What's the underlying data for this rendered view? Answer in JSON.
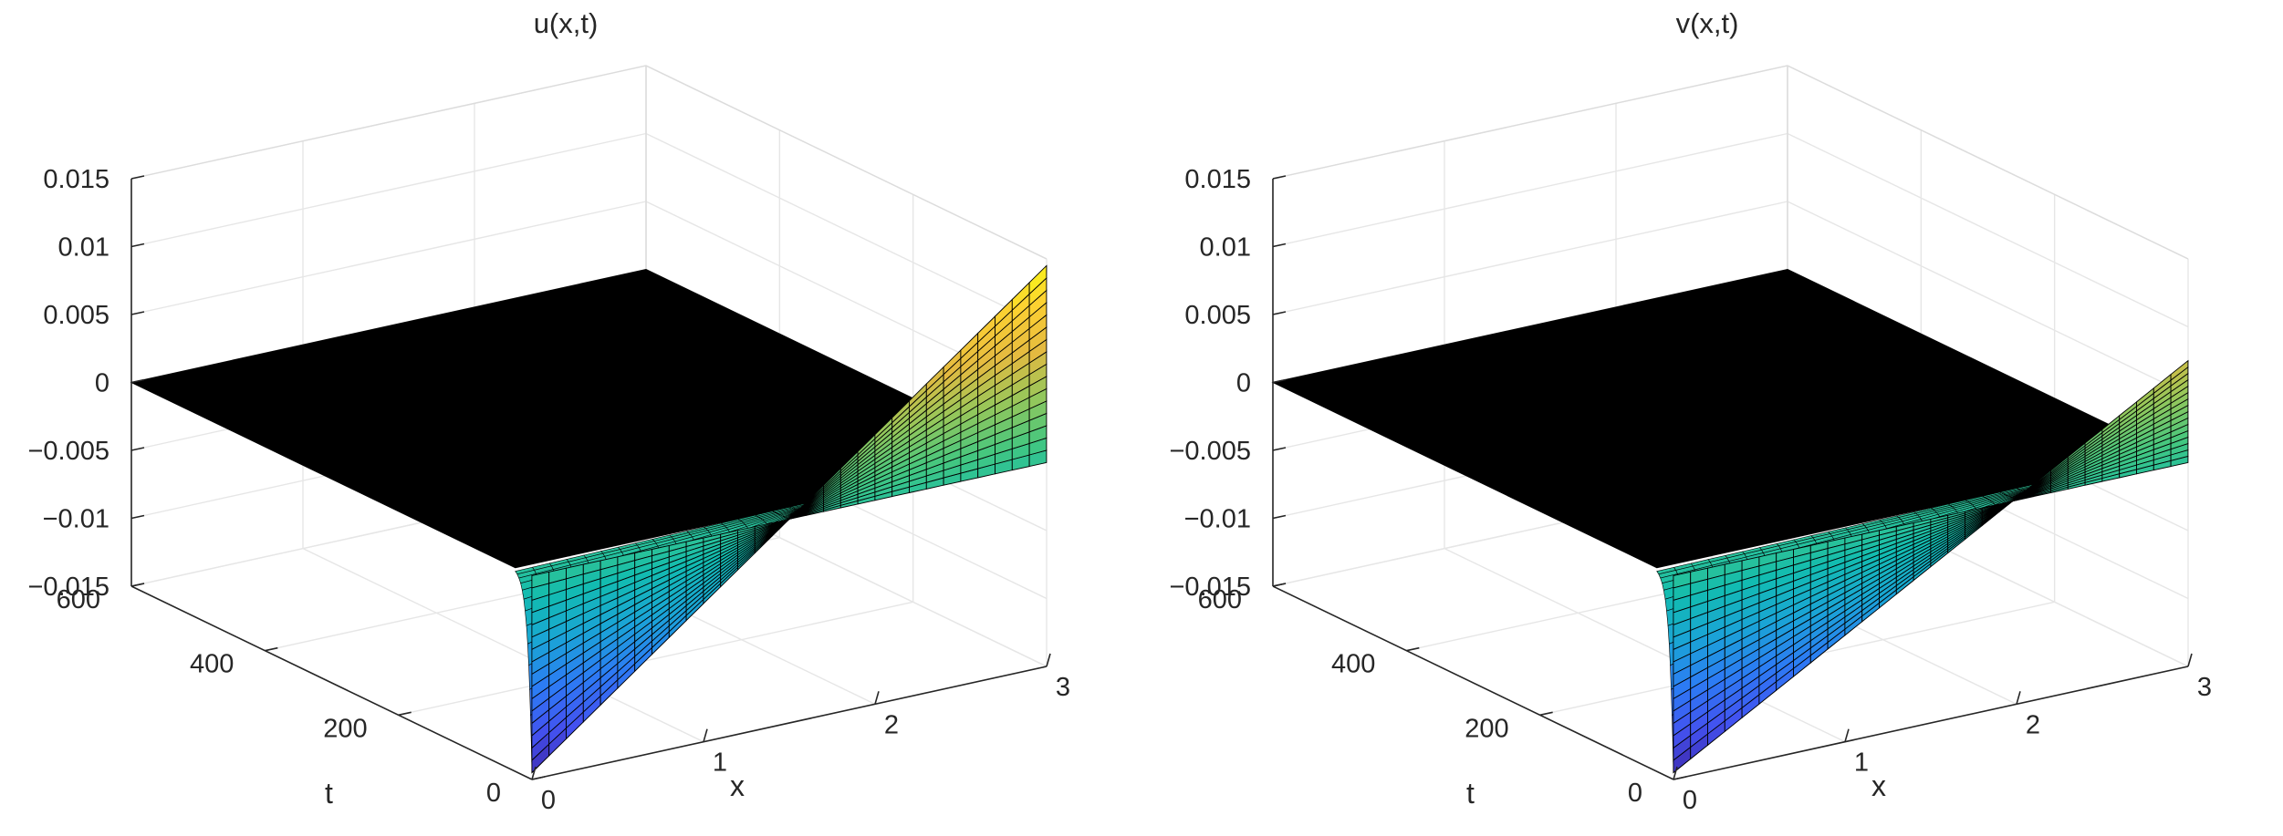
{
  "figure": {
    "background": "#ffffff",
    "grid": true,
    "colormap": "parula",
    "colormap_stops": [
      "#3e26a8",
      "#4352f0",
      "#2c7cf4",
      "#1aa4d6",
      "#12bcb0",
      "#44c77f",
      "#96c75a",
      "#e4ba40",
      "#fcd032",
      "#f9fb15"
    ],
    "plateau_color": "#000000"
  },
  "chart_data": [
    {
      "type": "surface",
      "title": "u(x,t)",
      "xlabel": "x",
      "ylabel": "t",
      "zlabel": "",
      "xlim": [
        0,
        3
      ],
      "ylim": [
        0,
        600
      ],
      "zlim": [
        -0.015,
        0.015
      ],
      "xticks": [
        0,
        1,
        2,
        3
      ],
      "yticks": [
        0,
        200,
        400,
        600
      ],
      "zticks": [
        -0.015,
        -0.01,
        -0.005,
        0,
        0.005,
        0.01,
        0.015
      ],
      "xtick_labels": [
        "0",
        "1",
        "2",
        "3"
      ],
      "ytick_labels": [
        "0",
        "200",
        "400",
        "600"
      ],
      "ztick_labels": [
        "−0.015",
        "−0.01",
        "−0.005",
        "0",
        "0.005",
        "0.01",
        "0.015"
      ],
      "surface": {
        "x_range": [
          0,
          3
        ],
        "initial_profile": "u(x,0) rises from about -0.0145 at x=0 to about 0.0145 at x=3",
        "initial_min": -0.0145,
        "initial_max": 0.0145,
        "decays_to": 0,
        "decay_by_t": 25
      }
    },
    {
      "type": "surface",
      "title": "v(x,t)",
      "xlabel": "x",
      "ylabel": "t",
      "zlabel": "",
      "xlim": [
        0,
        3
      ],
      "ylim": [
        0,
        600
      ],
      "zlim": [
        -0.015,
        0.015
      ],
      "xticks": [
        0,
        1,
        2,
        3
      ],
      "yticks": [
        0,
        200,
        400,
        600
      ],
      "zticks": [
        -0.015,
        -0.01,
        -0.005,
        0,
        0.005,
        0.01,
        0.015
      ],
      "xtick_labels": [
        "0",
        "1",
        "2",
        "3"
      ],
      "ytick_labels": [
        "0",
        "200",
        "400",
        "600"
      ],
      "ztick_labels": [
        "−0.015",
        "−0.01",
        "−0.005",
        "0",
        "0.005",
        "0.01",
        "0.015"
      ],
      "surface": {
        "x_range": [
          0,
          3
        ],
        "initial_profile": "v(x,0) rises from about -0.0145 at x=0 to about 0.0075 at x=3",
        "initial_min": -0.0145,
        "initial_max": 0.0075,
        "decays_to": 0,
        "decay_by_t": 25
      }
    }
  ]
}
